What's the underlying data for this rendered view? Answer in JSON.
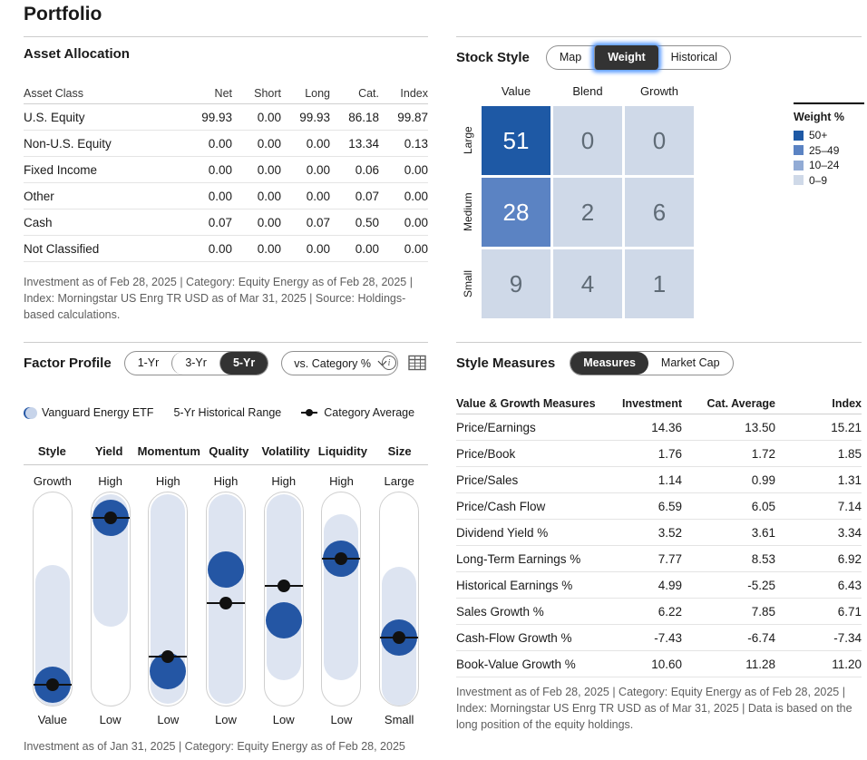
{
  "page": {
    "title": "Portfolio"
  },
  "asset_allocation": {
    "title": "Asset Allocation",
    "columns": [
      "Asset Class",
      "Net",
      "Short",
      "Long",
      "Cat.",
      "Index"
    ],
    "rows": [
      {
        "label": "U.S. Equity",
        "values": [
          "99.93",
          "0.00",
          "99.93",
          "86.18",
          "99.87"
        ]
      },
      {
        "label": "Non-U.S. Equity",
        "values": [
          "0.00",
          "0.00",
          "0.00",
          "13.34",
          "0.13"
        ]
      },
      {
        "label": "Fixed Income",
        "values": [
          "0.00",
          "0.00",
          "0.00",
          "0.06",
          "0.00"
        ]
      },
      {
        "label": "Other",
        "values": [
          "0.00",
          "0.00",
          "0.00",
          "0.07",
          "0.00"
        ]
      },
      {
        "label": "Cash",
        "values": [
          "0.07",
          "0.00",
          "0.07",
          "0.50",
          "0.00"
        ]
      },
      {
        "label": "Not Classified",
        "values": [
          "0.00",
          "0.00",
          "0.00",
          "0.00",
          "0.00"
        ]
      }
    ],
    "footnote": "Investment as of Feb 28, 2025 | Category: Equity Energy as of Feb 28, 2025 | Index: Morningstar US Enrg TR USD as of Mar 31, 2025 | Source: Holdings-based calculations."
  },
  "stock_style": {
    "title": "Stock Style",
    "buttons": [
      "Map",
      "Weight",
      "Historical"
    ],
    "selected": "Weight",
    "col_labels": [
      "Value",
      "Blend",
      "Growth"
    ],
    "row_labels": [
      "Large",
      "Medium",
      "Small"
    ],
    "matrix": [
      [
        51,
        0,
        0
      ],
      [
        28,
        2,
        6
      ],
      [
        9,
        4,
        1
      ]
    ],
    "legend_title": "Weight %",
    "legend_items": [
      {
        "label": "50+",
        "color": "#1e59a5"
      },
      {
        "label": "25–49",
        "color": "#5b83c3"
      },
      {
        "label": "10–24",
        "color": "#92abd5"
      },
      {
        "label": "0–9",
        "color": "#cfd9e8"
      }
    ]
  },
  "factor_profile": {
    "title": "Factor Profile",
    "period_buttons": [
      "1-Yr",
      "3-Yr",
      "5-Yr"
    ],
    "selected_period": "5-Yr",
    "dropdown_label": "vs. Category %",
    "legend": [
      {
        "label": "Vanguard Energy ETF",
        "type": "fund"
      },
      {
        "label": "5-Yr Historical Range",
        "type": "range"
      },
      {
        "label": "Category Average",
        "type": "category"
      }
    ],
    "factors": [
      {
        "name": "Style",
        "top": "Growth",
        "bottom": "Value",
        "range": [
          34,
          100
        ],
        "fund": 90,
        "category": 90
      },
      {
        "name": "Yield",
        "top": "High",
        "bottom": "Low",
        "range": [
          1,
          63
        ],
        "fund": 12,
        "category": 12
      },
      {
        "name": "Momentum",
        "top": "High",
        "bottom": "Low",
        "range": [
          1,
          99
        ],
        "fund": 84,
        "category": 77
      },
      {
        "name": "Quality",
        "top": "High",
        "bottom": "Low",
        "range": [
          1,
          99
        ],
        "fund": 36,
        "category": 52
      },
      {
        "name": "Volatility",
        "top": "High",
        "bottom": "Low",
        "range": [
          1,
          88
        ],
        "fund": 60,
        "category": 44
      },
      {
        "name": "Liquidity",
        "top": "High",
        "bottom": "Low",
        "range": [
          10,
          88
        ],
        "fund": 31,
        "category": 31
      },
      {
        "name": "Size",
        "top": "Large",
        "bottom": "Small",
        "range": [
          35,
          100
        ],
        "fund": 68,
        "category": 68
      }
    ],
    "footnote": "Investment as of Jan 31, 2025 | Category: Equity Energy as of Feb 28, 2025"
  },
  "style_measures": {
    "title": "Style Measures",
    "buttons": [
      "Measures",
      "Market Cap"
    ],
    "selected": "Measures",
    "columns": [
      "Value & Growth Measures",
      "Investment",
      "Cat. Average",
      "Index"
    ],
    "rows": [
      {
        "label": "Price/Earnings",
        "values": [
          "14.36",
          "13.50",
          "15.21"
        ]
      },
      {
        "label": "Price/Book",
        "values": [
          "1.76",
          "1.72",
          "1.85"
        ]
      },
      {
        "label": "Price/Sales",
        "values": [
          "1.14",
          "0.99",
          "1.31"
        ]
      },
      {
        "label": "Price/Cash Flow",
        "values": [
          "6.59",
          "6.05",
          "7.14"
        ]
      },
      {
        "label": "Dividend Yield %",
        "values": [
          "3.52",
          "3.61",
          "3.34"
        ]
      },
      {
        "label": "Long-Term Earnings %",
        "values": [
          "7.77",
          "8.53",
          "6.92"
        ]
      },
      {
        "label": "Historical Earnings %",
        "values": [
          "4.99",
          "-5.25",
          "6.43"
        ]
      },
      {
        "label": "Sales Growth %",
        "values": [
          "6.22",
          "7.85",
          "6.71"
        ]
      },
      {
        "label": "Cash-Flow Growth %",
        "values": [
          "-7.43",
          "-6.74",
          "-7.34"
        ]
      },
      {
        "label": "Book-Value Growth %",
        "values": [
          "10.60",
          "11.28",
          "11.20"
        ]
      }
    ],
    "footnote": "Investment as of Feb 28, 2025 | Category: Equity Energy as of Feb 28, 2025 | Index: Morningstar US Enrg TR USD as of Mar 31, 2025 | Data is based on the long position of the equity holdings."
  },
  "colors": {
    "accent_dark_blue": "#1e59a5",
    "accent_mid_blue": "#5b83c3",
    "accent_midlight_blue": "#92abd5",
    "accent_light_blue": "#cfd9e8",
    "range_blue": "#dde4f1",
    "fund_dot_blue": "#2456a4",
    "selected_button_bg": "#333333",
    "focus_glow_blue": "#4890ff"
  },
  "chart_data": [
    {
      "type": "heatmap",
      "title": "Stock Style Weight %",
      "x_labels": [
        "Value",
        "Blend",
        "Growth"
      ],
      "y_labels": [
        "Large",
        "Medium",
        "Small"
      ],
      "values": [
        [
          51,
          0,
          0
        ],
        [
          28,
          2,
          6
        ],
        [
          9,
          4,
          1
        ]
      ],
      "legend": {
        "title": "Weight %",
        "bins": [
          "50+",
          "25–49",
          "10–24",
          "0–9"
        ]
      }
    },
    {
      "type": "scatter",
      "title": "Factor Profile (5-Yr, vs. Category %)",
      "categories": [
        "Style",
        "Yield",
        "Momentum",
        "Quality",
        "Volatility",
        "Liquidity",
        "Size"
      ],
      "axis_top_labels": [
        "Growth",
        "High",
        "High",
        "High",
        "High",
        "High",
        "Large"
      ],
      "axis_bottom_labels": [
        "Value",
        "Low",
        "Low",
        "Low",
        "Low",
        "Low",
        "Small"
      ],
      "series": [
        {
          "name": "Vanguard Energy ETF",
          "values_pct_from_top": [
            90,
            12,
            84,
            36,
            60,
            31,
            68
          ]
        },
        {
          "name": "Category Average",
          "values_pct_from_top": [
            90,
            12,
            77,
            52,
            44,
            31,
            68
          ]
        },
        {
          "name": "5-Yr Historical Range",
          "ranges_pct_from_top": [
            [
              34,
              100
            ],
            [
              1,
              63
            ],
            [
              1,
              99
            ],
            [
              1,
              99
            ],
            [
              1,
              88
            ],
            [
              10,
              88
            ],
            [
              35,
              100
            ]
          ]
        }
      ]
    }
  ]
}
